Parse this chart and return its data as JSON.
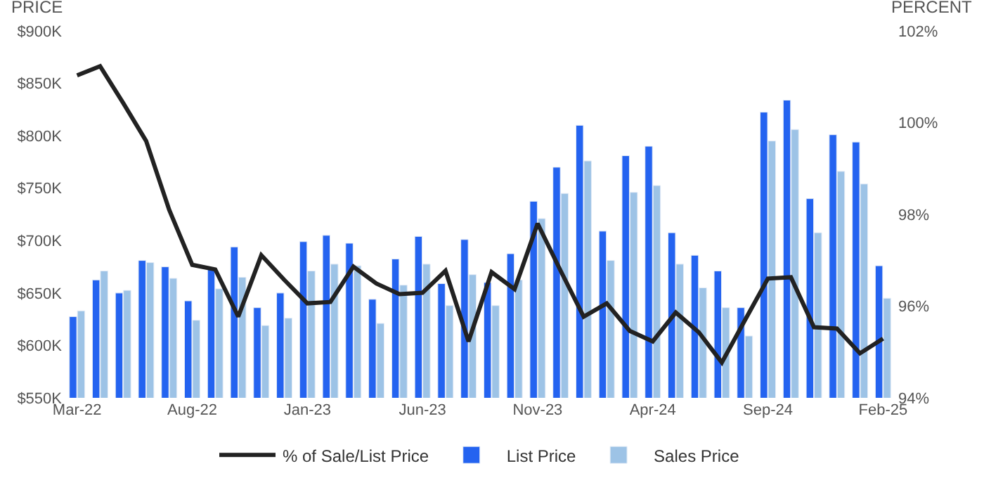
{
  "chart_data": {
    "type": "bar",
    "ylabel": "PRICE",
    "y2label": "PERCENT",
    "categories": [
      "Mar-22",
      null,
      null,
      null,
      null,
      "Aug-22",
      null,
      null,
      null,
      null,
      "Jan-23",
      null,
      null,
      null,
      null,
      "Jun-23",
      null,
      null,
      null,
      null,
      "Nov-23",
      null,
      null,
      null,
      null,
      "Apr-24",
      null,
      null,
      null,
      null,
      "Sep-24",
      null,
      null,
      null,
      null,
      "Feb-25"
    ],
    "series": [
      {
        "name": "% of Sale/List Price",
        "type": "line",
        "axis": "y2",
        "color": "#222222",
        "values": [
          101.03,
          101.23,
          100.43,
          99.6,
          98.1,
          96.9,
          96.8,
          95.77,
          97.11,
          96.57,
          96.06,
          96.09,
          96.86,
          96.49,
          96.26,
          96.29,
          96.77,
          95.23,
          96.74,
          96.37,
          97.8,
          96.77,
          95.77,
          96.06,
          95.46,
          95.23,
          95.86,
          95.43,
          94.77,
          95.69,
          96.6,
          96.63,
          95.54,
          95.51,
          94.97,
          95.29
        ]
      },
      {
        "name": "List Price",
        "color": "#2463f0",
        "values": [
          627500,
          662500,
          650000,
          681000,
          675000,
          642500,
          674000,
          694000,
          636000,
          650000,
          699000,
          705000,
          697500,
          644000,
          682500,
          704000,
          659000,
          701000,
          660000,
          687500,
          737500,
          770000,
          810000,
          709000,
          781000,
          790000,
          707500,
          686000,
          671000,
          636000,
          822500,
          834000,
          740000,
          801000,
          794000,
          676000
        ]
      },
      {
        "name": "Sales Price",
        "color": "#9dc3e6",
        "values": [
          633000,
          671000,
          652500,
          679000,
          664000,
          624000,
          654000,
          665000,
          619000,
          626000,
          671000,
          677500,
          676000,
          621000,
          657500,
          677500,
          638000,
          667500,
          638000,
          662500,
          721000,
          745000,
          776000,
          681000,
          746000,
          752500,
          677500,
          655000,
          636000,
          609000,
          795000,
          806000,
          707500,
          766000,
          754000,
          645000
        ]
      }
    ],
    "ylim": [
      550000,
      900000
    ],
    "yticks": [
      {
        "value": 550000,
        "label": "$550K"
      },
      {
        "value": 600000,
        "label": "$600K"
      },
      {
        "value": 650000,
        "label": "$650K"
      },
      {
        "value": 700000,
        "label": "$700K"
      },
      {
        "value": 750000,
        "label": "$750K"
      },
      {
        "value": 800000,
        "label": "$800K"
      },
      {
        "value": 850000,
        "label": "$850K"
      },
      {
        "value": 900000,
        "label": "$900K"
      }
    ],
    "y2lim": [
      94,
      102
    ],
    "y2ticks": [
      {
        "value": 94,
        "label": "94%"
      },
      {
        "value": 96,
        "label": "96%"
      },
      {
        "value": 98,
        "label": "98%"
      },
      {
        "value": 100,
        "label": "100%"
      },
      {
        "value": 102,
        "label": "102%"
      }
    ],
    "legend": "bottom"
  }
}
